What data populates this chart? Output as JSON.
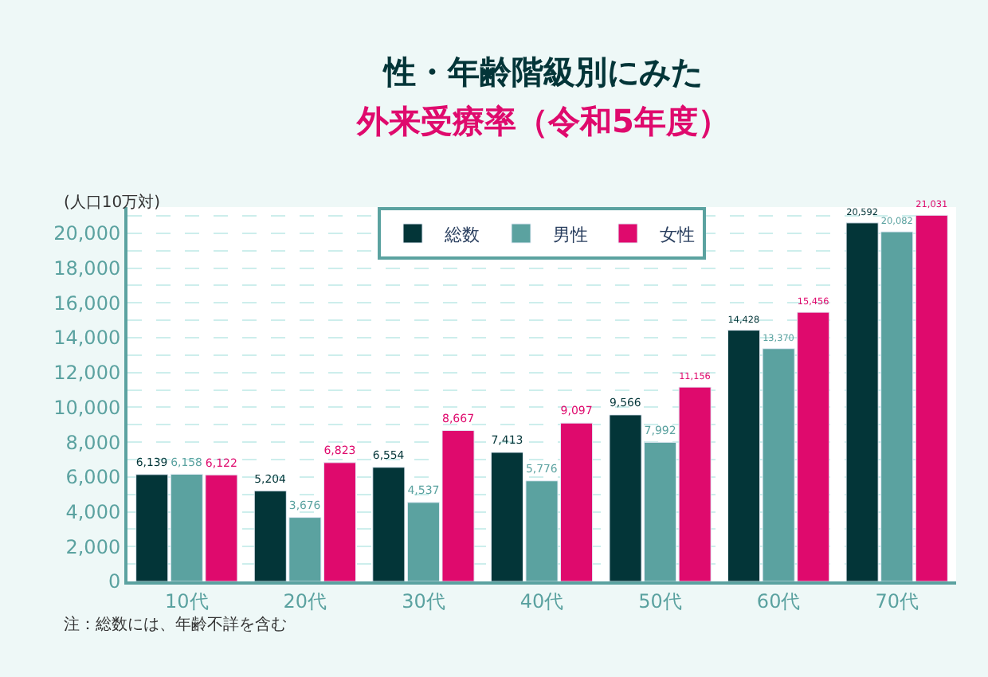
{
  "chart_data": {
    "type": "bar",
    "title": "性・年齢階級別にみた",
    "subtitle": "外来受療率（令和5年度）",
    "ylabel": "(人口10万対)",
    "categories": [
      "10代",
      "20代",
      "30代",
      "40代",
      "50代",
      "60代",
      "70代"
    ],
    "series": [
      {
        "name": "総数",
        "color": "#033538",
        "values": [
          6139,
          5204,
          6554,
          7413,
          9566,
          14428,
          20592
        ],
        "value_labels": [
          "6,139",
          "5,204",
          "6,554",
          "7,413",
          "9,566",
          "14,428",
          "20,592"
        ]
      },
      {
        "name": "男性",
        "color": "#5ba2a0",
        "values": [
          6158,
          3676,
          4537,
          5776,
          7992,
          13370,
          20082
        ],
        "value_labels": [
          "6,158",
          "3,676",
          "4,537",
          "5,776",
          "7,992",
          "13,370",
          "20,082"
        ]
      },
      {
        "name": "女性",
        "color": "#df0a6d",
        "values": [
          6122,
          6823,
          8667,
          9097,
          11156,
          15456,
          21031
        ],
        "value_labels": [
          "6,122",
          "6,823",
          "8,667",
          "9,097",
          "11,156",
          "15,456",
          "21,031"
        ]
      }
    ],
    "ylim": [
      0,
      21500
    ],
    "yticks": [
      0,
      {
        "value": 1000,
        "label": null
      },
      {
        "value": 2000,
        "label": "2,000"
      },
      {
        "value": 3000,
        "label": null
      },
      {
        "value": 4000,
        "label": "4,000"
      },
      {
        "value": 5000,
        "label": null
      },
      {
        "value": 6000,
        "label": "6,000"
      },
      {
        "value": 7000,
        "label": null
      },
      {
        "value": 8000,
        "label": "8,000"
      },
      {
        "value": 9000,
        "label": null
      },
      {
        "value": 10000,
        "label": "10,000"
      },
      {
        "value": 11000,
        "label": null
      },
      {
        "value": 12000,
        "label": "12,000"
      },
      {
        "value": 13000,
        "label": null
      },
      {
        "value": 14000,
        "label": "14,000"
      },
      {
        "value": 15000,
        "label": null
      },
      {
        "value": 16000,
        "label": "16,000"
      },
      {
        "value": 17000,
        "label": null
      },
      {
        "value": 18000,
        "label": "18,000"
      },
      {
        "value": 19000,
        "label": null
      },
      {
        "value": 20000,
        "label": "20,000"
      },
      {
        "value": 21000,
        "label": null
      }
    ],
    "grid": "y",
    "legend": "top",
    "annotations": [
      "注：総数には、年齢不詳を含む"
    ]
  }
}
